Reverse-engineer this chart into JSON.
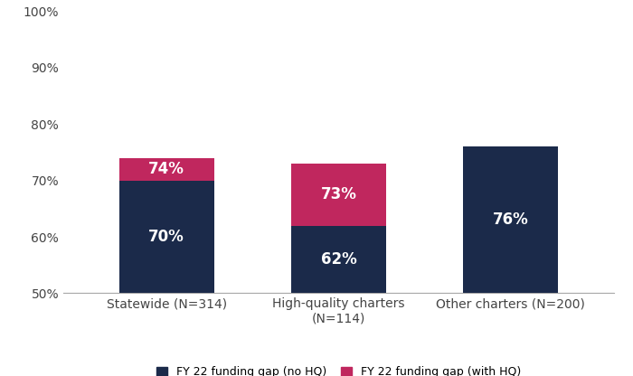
{
  "categories": [
    "Statewide (N=314)",
    "High-quality charters\n(N=114)",
    "Other charters (N=200)"
  ],
  "no_hq_values": [
    70,
    62,
    76
  ],
  "with_hq_values": [
    4,
    11,
    0
  ],
  "no_hq_labels": [
    "70%",
    "62%",
    "76%"
  ],
  "with_hq_labels": [
    "74%",
    "73%",
    ""
  ],
  "color_no_hq": "#1B2A4A",
  "color_with_hq": "#C0275E",
  "ymin": 50,
  "ymax": 100,
  "yticks": [
    50,
    60,
    70,
    80,
    90,
    100
  ],
  "ytick_labels": [
    "50%",
    "60%",
    "70%",
    "80%",
    "90%",
    "100%"
  ],
  "legend_no_hq": "FY 22 funding gap (no HQ)",
  "legend_with_hq": "FY 22 funding gap (with HQ)",
  "bar_width": 0.55,
  "label_fontsize": 12,
  "tick_fontsize": 10,
  "legend_fontsize": 9,
  "background_color": "#ffffff"
}
